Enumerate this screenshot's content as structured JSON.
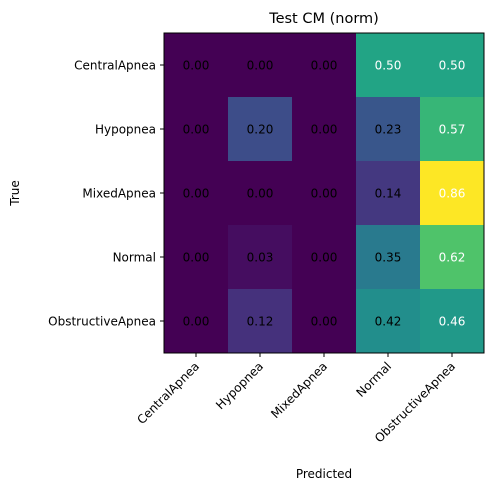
{
  "chart_data": {
    "type": "heatmap",
    "title": "Test CM (norm)",
    "xlabel": "Predicted",
    "ylabel": "True",
    "x_categories": [
      "CentralApnea",
      "Hypopnea",
      "MixedApnea",
      "Normal",
      "ObstructiveApnea"
    ],
    "y_categories": [
      "CentralApnea",
      "Hypopnea",
      "MixedApnea",
      "Normal",
      "ObstructiveApnea"
    ],
    "values": [
      [
        0.0,
        0.0,
        0.0,
        0.5,
        0.5
      ],
      [
        0.0,
        0.2,
        0.0,
        0.23,
        0.57
      ],
      [
        0.0,
        0.0,
        0.0,
        0.14,
        0.86
      ],
      [
        0.0,
        0.03,
        0.0,
        0.35,
        0.62
      ],
      [
        0.0,
        0.12,
        0.0,
        0.42,
        0.46
      ]
    ],
    "value_labels": [
      [
        "0.00",
        "0.00",
        "0.00",
        "0.50",
        "0.50"
      ],
      [
        "0.00",
        "0.20",
        "0.00",
        "0.23",
        "0.57"
      ],
      [
        "0.00",
        "0.00",
        "0.00",
        "0.14",
        "0.86"
      ],
      [
        "0.00",
        "0.03",
        "0.00",
        "0.35",
        "0.62"
      ],
      [
        "0.00",
        "0.12",
        "0.00",
        "0.42",
        "0.46"
      ]
    ],
    "colormap": "viridis",
    "value_range": [
      0.0,
      0.86
    ],
    "light_text_color": "#ffffff",
    "dark_text_color": "#000000",
    "grid": false
  }
}
